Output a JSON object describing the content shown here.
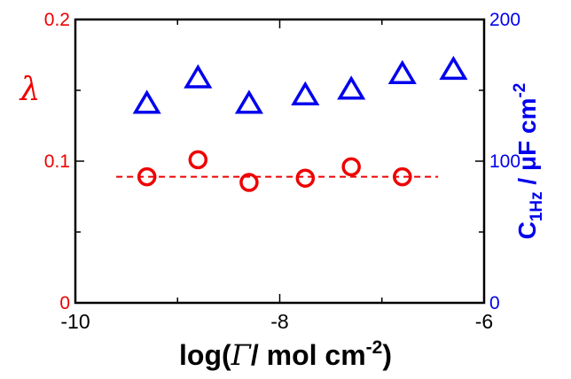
{
  "chart_data": {
    "type": "scatter",
    "xlim": [
      -10,
      -6
    ],
    "xticks": [
      "-10",
      "-8",
      "-6"
    ],
    "xlabel": {
      "prefix": "log(",
      "symbol": "Γ",
      "middle": "/ mol cm",
      "sup": "-2",
      "suffix": ")"
    },
    "left_axis": {
      "label": "λ",
      "color": "#ee0000",
      "ylim": [
        0,
        0.2
      ],
      "ticks": [
        "0",
        "0.1",
        "0.2"
      ]
    },
    "right_axis": {
      "label": {
        "main": "C",
        "sub": "1Hz",
        "middle": " / μF cm",
        "sup": "-2"
      },
      "color": "#0000ee",
      "ylim": [
        0,
        200
      ],
      "ticks": [
        "0",
        "100",
        "200"
      ]
    },
    "series": [
      {
        "axis": "left",
        "marker": "circle",
        "color": "#ee0000",
        "x": [
          -9.3,
          -8.8,
          -8.3,
          -7.75,
          -7.3,
          -6.8
        ],
        "y": [
          0.089,
          0.101,
          0.085,
          0.088,
          0.096,
          0.089
        ]
      },
      {
        "axis": "right",
        "marker": "triangle",
        "color": "#0000ee",
        "x": [
          -9.3,
          -8.8,
          -8.3,
          -7.75,
          -7.3,
          -6.8,
          -6.3
        ],
        "y": [
          140,
          158,
          140,
          146,
          150,
          161,
          164
        ]
      }
    ],
    "reference_line": {
      "axis": "left",
      "style": "dashed",
      "color": "#ee0000",
      "y": 0.089,
      "x_range": [
        -9.6,
        -6.45
      ]
    },
    "grid": false
  }
}
